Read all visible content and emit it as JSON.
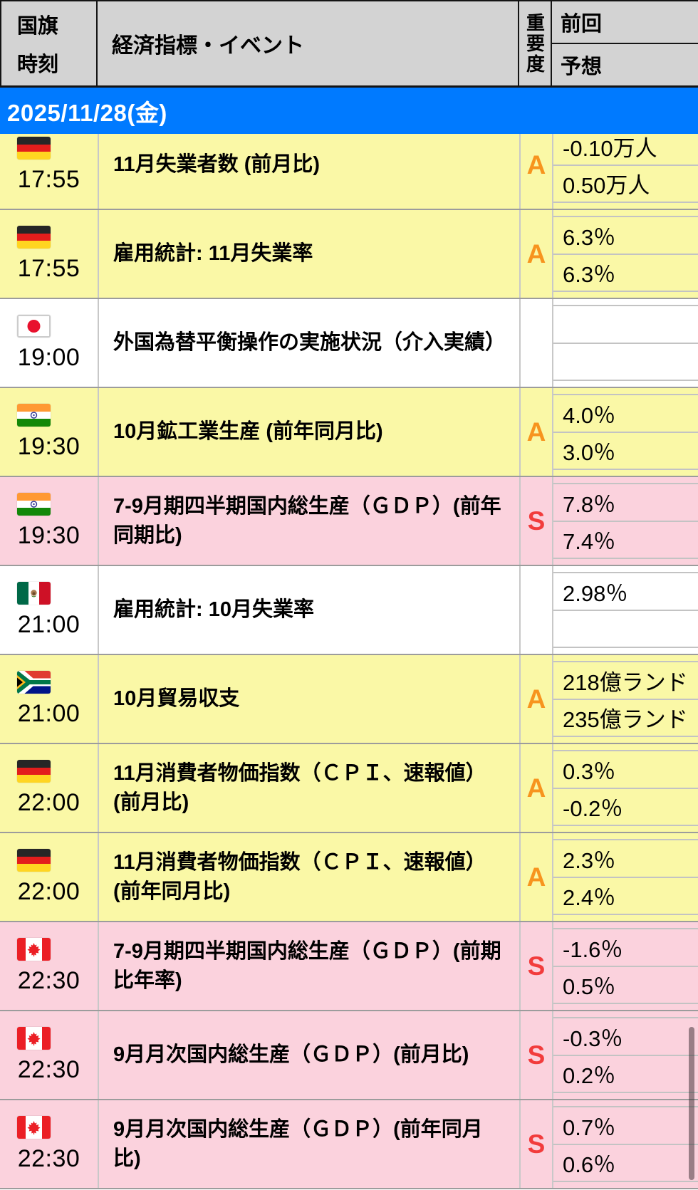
{
  "header": {
    "col_flag_time": {
      "line1": "国旗",
      "line2": "時刻"
    },
    "col_event": "経済指標・イベント",
    "col_importance": "重要度",
    "col_previous": "前回",
    "col_forecast": "予想"
  },
  "date_header": {
    "label": "2025/11/28(金)",
    "bg_color": "#007AFF"
  },
  "importance_colors": {
    "A": "#F7941E",
    "S": "#F23C3C"
  },
  "row_colors": {
    "yellow": "#FAF8A6",
    "pink": "#FBD2DD",
    "white": "#FFFFFF"
  },
  "rows": [
    {
      "flag": "de",
      "flag_name": "germany-flag",
      "time": "17:55",
      "event": "11月失業者数 (前月比)",
      "importance": "A",
      "previous": "-0.10万人",
      "forecast": "0.50万人",
      "highlight": "yellow"
    },
    {
      "flag": "de",
      "flag_name": "germany-flag",
      "time": "17:55",
      "event": "雇用統計: 11月失業率",
      "importance": "A",
      "previous": "6.3％",
      "forecast": "6.3％",
      "highlight": "yellow"
    },
    {
      "flag": "jp",
      "flag_name": "japan-flag",
      "time": "19:00",
      "event": "外国為替平衡操作の実施状況（介入実績）",
      "importance": "",
      "previous": "",
      "forecast": "",
      "highlight": "white"
    },
    {
      "flag": "in",
      "flag_name": "india-flag",
      "time": "19:30",
      "event": "10月鉱工業生産 (前年同月比)",
      "importance": "A",
      "previous": "4.0％",
      "forecast": "3.0％",
      "highlight": "yellow"
    },
    {
      "flag": "in",
      "flag_name": "india-flag",
      "time": "19:30",
      "event": "7-9月期四半期国内総生産（ＧＤＰ）(前年同期比)",
      "importance": "S",
      "previous": "7.8％",
      "forecast": "7.4％",
      "highlight": "pink"
    },
    {
      "flag": "mx",
      "flag_name": "mexico-flag",
      "time": "21:00",
      "event": "雇用統計: 10月失業率",
      "importance": "",
      "previous": "2.98％",
      "forecast": "",
      "highlight": "white"
    },
    {
      "flag": "za",
      "flag_name": "south-africa-flag",
      "time": "21:00",
      "event": "10月貿易収支",
      "importance": "A",
      "previous": "218億ランド",
      "forecast": "235億ランド",
      "highlight": "yellow"
    },
    {
      "flag": "de",
      "flag_name": "germany-flag",
      "time": "22:00",
      "event": "11月消費者物価指数（ＣＰＩ、速報値）(前月比)",
      "importance": "A",
      "previous": "0.3％",
      "forecast": "-0.2％",
      "highlight": "yellow"
    },
    {
      "flag": "de",
      "flag_name": "germany-flag",
      "time": "22:00",
      "event": "11月消費者物価指数（ＣＰＩ、速報値）(前年同月比)",
      "importance": "A",
      "previous": "2.3％",
      "forecast": "2.4％",
      "highlight": "yellow"
    },
    {
      "flag": "ca",
      "flag_name": "canada-flag",
      "time": "22:30",
      "event": "7-9月期四半期国内総生産（ＧＤＰ）(前期比年率)",
      "importance": "S",
      "previous": "-1.6％",
      "forecast": "0.5％",
      "highlight": "pink"
    },
    {
      "flag": "ca",
      "flag_name": "canada-flag",
      "time": "22:30",
      "event": "9月月次国内総生産（ＧＤＰ）(前月比)",
      "importance": "S",
      "previous": "-0.3％",
      "forecast": "0.2％",
      "highlight": "pink"
    },
    {
      "flag": "ca",
      "flag_name": "canada-flag",
      "time": "22:30",
      "event": "9月月次国内総生産（ＧＤＰ）(前年同月比)",
      "importance": "S",
      "previous": "0.7％",
      "forecast": "0.6％",
      "highlight": "pink"
    }
  ]
}
